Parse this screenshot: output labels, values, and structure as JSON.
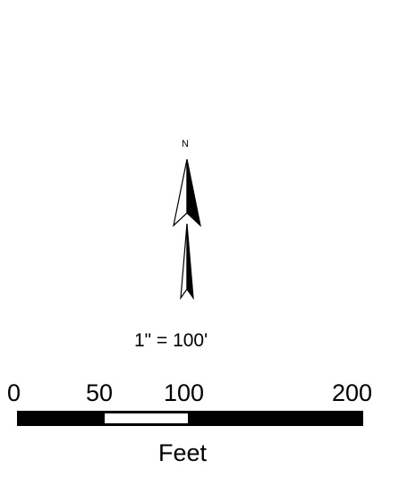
{
  "north_arrow": {
    "label": "N",
    "icon": "north-arrow-icon"
  },
  "scale": {
    "ratio_text": "1\" = 100'",
    "ticks": [
      "0",
      "50",
      "100",
      "200"
    ],
    "units": "Feet",
    "colors": {
      "bar_dark": "#000000",
      "bar_light": "#ffffff"
    }
  }
}
